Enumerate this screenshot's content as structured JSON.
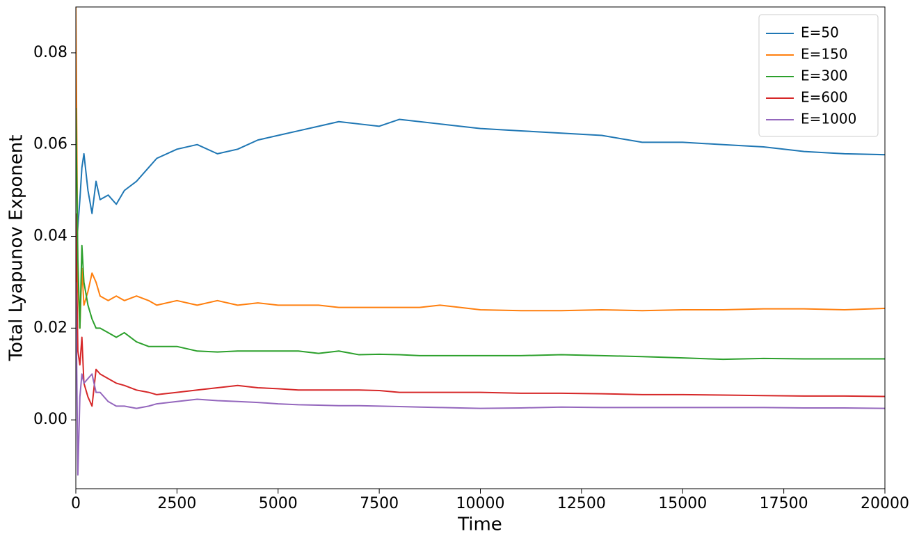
{
  "chart_data": {
    "type": "line",
    "xlabel": "Time",
    "ylabel": "Total Lyapunov Exponent",
    "x": [
      0,
      50,
      100,
      150,
      200,
      300,
      400,
      500,
      600,
      800,
      1000,
      1200,
      1500,
      1800,
      2000,
      2500,
      3000,
      3500,
      4000,
      4500,
      5000,
      5500,
      6000,
      6500,
      7000,
      7500,
      8000,
      8500,
      9000,
      9500,
      10000,
      11000,
      12000,
      13000,
      14000,
      15000,
      16000,
      17000,
      18000,
      19000,
      20000
    ],
    "series": [
      {
        "name": "E=50",
        "color": "#1f77b4",
        "values": [
          0.035,
          0.042,
          0.048,
          0.055,
          0.058,
          0.05,
          0.045,
          0.052,
          0.048,
          0.049,
          0.047,
          0.05,
          0.052,
          0.055,
          0.057,
          0.059,
          0.06,
          0.058,
          0.059,
          0.061,
          0.062,
          0.063,
          0.064,
          0.065,
          0.0645,
          0.064,
          0.0655,
          0.065,
          0.0645,
          0.064,
          0.0635,
          0.063,
          0.0625,
          0.062,
          0.0605,
          0.0605,
          0.06,
          0.0595,
          0.0585,
          0.058,
          0.0578
        ]
      },
      {
        "name": "E=150",
        "color": "#ff7f0e",
        "values": [
          0.09,
          0.03,
          0.02,
          0.033,
          0.025,
          0.028,
          0.032,
          0.03,
          0.027,
          0.026,
          0.027,
          0.026,
          0.027,
          0.026,
          0.025,
          0.026,
          0.025,
          0.026,
          0.025,
          0.0255,
          0.025,
          0.025,
          0.025,
          0.0245,
          0.0245,
          0.0245,
          0.0245,
          0.0245,
          0.025,
          0.0245,
          0.024,
          0.0238,
          0.0238,
          0.024,
          0.0238,
          0.024,
          0.024,
          0.0242,
          0.0242,
          0.024,
          0.0243
        ]
      },
      {
        "name": "E=300",
        "color": "#2ca02c",
        "values": [
          0.068,
          0.035,
          0.02,
          0.038,
          0.03,
          0.025,
          0.022,
          0.02,
          0.02,
          0.019,
          0.018,
          0.019,
          0.017,
          0.016,
          0.016,
          0.016,
          0.015,
          0.0148,
          0.015,
          0.015,
          0.015,
          0.015,
          0.0145,
          0.015,
          0.0142,
          0.0143,
          0.0142,
          0.014,
          0.014,
          0.014,
          0.014,
          0.014,
          0.0142,
          0.014,
          0.0138,
          0.0135,
          0.0132,
          0.0134,
          0.0133,
          0.0133,
          0.0133
        ]
      },
      {
        "name": "E=600",
        "color": "#d62728",
        "values": [
          0.045,
          0.015,
          0.012,
          0.018,
          0.008,
          0.005,
          0.003,
          0.011,
          0.01,
          0.009,
          0.008,
          0.0075,
          0.0065,
          0.006,
          0.0055,
          0.006,
          0.0065,
          0.007,
          0.0075,
          0.007,
          0.0068,
          0.0065,
          0.0065,
          0.0065,
          0.0065,
          0.0064,
          0.006,
          0.006,
          0.006,
          0.006,
          0.006,
          0.0058,
          0.0058,
          0.0057,
          0.0055,
          0.0055,
          0.0054,
          0.0053,
          0.0052,
          0.0052,
          0.0051
        ]
      },
      {
        "name": "E=1000",
        "color": "#9467bd",
        "values": [
          0.03,
          -0.012,
          0.005,
          0.01,
          0.008,
          0.009,
          0.01,
          0.006,
          0.006,
          0.004,
          0.003,
          0.003,
          0.0025,
          0.003,
          0.0035,
          0.004,
          0.0045,
          0.0042,
          0.004,
          0.0038,
          0.0035,
          0.0033,
          0.0032,
          0.0031,
          0.0031,
          0.003,
          0.0029,
          0.0028,
          0.0027,
          0.0026,
          0.0025,
          0.0026,
          0.0028,
          0.0027,
          0.0027,
          0.0027,
          0.0027,
          0.0027,
          0.0026,
          0.0026,
          0.0025
        ]
      }
    ],
    "xlim": [
      0,
      20000
    ],
    "xticks": [
      0,
      2500,
      5000,
      7500,
      10000,
      12500,
      15000,
      17500,
      20000
    ],
    "ylim": [
      -0.015,
      0.09
    ],
    "yticks": [
      {
        "value": 0,
        "label": "0.00"
      },
      0.02,
      0.04,
      0.06,
      0.08
    ],
    "grid": false,
    "legend": "upper right"
  }
}
